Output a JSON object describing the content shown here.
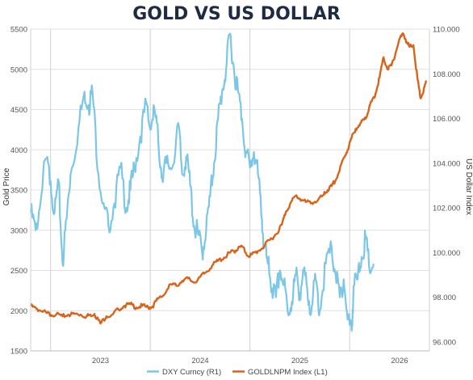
{
  "chart_data": {
    "type": "line",
    "title": "GOLD VS US DOLLAR",
    "ylabel_left": "Gold Price",
    "ylabel_right": "US Dollar Index",
    "x_ticks": [
      "2023",
      "2024",
      "2025",
      "2026"
    ],
    "x_range": [
      2022.3,
      2026.3
    ],
    "year_gridlines": [
      2022.5,
      2023.5,
      2024.5,
      2025.5
    ],
    "ylim_left": [
      1500,
      5500
    ],
    "yticks_left": [
      "1500",
      "2000",
      "2500",
      "3000",
      "3500",
      "4000",
      "4500",
      "5000",
      "5500"
    ],
    "ylim_right": [
      95.6,
      110.0
    ],
    "yticks_right": [
      "96.000",
      "98.000",
      "100.000",
      "102.000",
      "104.000",
      "106.000",
      "108.000",
      "110.000"
    ],
    "grid": true,
    "legend_position": "bottom",
    "colors": {
      "dxy": "#7cc6e6",
      "gold": "#d8641c"
    },
    "series": [
      {
        "name": "DXY Curncy (R1)",
        "axis": "right",
        "points": [
          [
            2022.3,
            101.8
          ],
          [
            2022.35,
            101.0
          ],
          [
            2022.4,
            102.3
          ],
          [
            2022.45,
            104.2
          ],
          [
            2022.5,
            103.2
          ],
          [
            2022.54,
            101.8
          ],
          [
            2022.58,
            103.2
          ],
          [
            2022.62,
            99.5
          ],
          [
            2022.66,
            101.5
          ],
          [
            2022.7,
            103.5
          ],
          [
            2022.78,
            105.6
          ],
          [
            2022.84,
            107.2
          ],
          [
            2022.88,
            106.6
          ],
          [
            2022.92,
            107.2
          ],
          [
            2022.98,
            103.5
          ],
          [
            2023.04,
            102.0
          ],
          [
            2023.08,
            101.2
          ],
          [
            2023.14,
            102.2
          ],
          [
            2023.2,
            103.8
          ],
          [
            2023.26,
            102.0
          ],
          [
            2023.3,
            102.8
          ],
          [
            2023.34,
            103.8
          ],
          [
            2023.4,
            105.2
          ],
          [
            2023.46,
            106.7
          ],
          [
            2023.5,
            105.5
          ],
          [
            2023.54,
            106.5
          ],
          [
            2023.58,
            105.0
          ],
          [
            2023.62,
            103.3
          ],
          [
            2023.66,
            104.0
          ],
          [
            2023.72,
            103.8
          ],
          [
            2023.78,
            105.8
          ],
          [
            2023.82,
            103.5
          ],
          [
            2023.86,
            104.3
          ],
          [
            2023.9,
            103.0
          ],
          [
            2023.94,
            101.2
          ],
          [
            2023.98,
            100.8
          ],
          [
            2024.02,
            100.0
          ],
          [
            2024.06,
            101.0
          ],
          [
            2024.1,
            102.5
          ],
          [
            2024.14,
            104.0
          ],
          [
            2024.18,
            106.0
          ],
          [
            2024.22,
            107.2
          ],
          [
            2024.26,
            108.2
          ],
          [
            2024.3,
            109.8
          ],
          [
            2024.34,
            108.2
          ],
          [
            2024.38,
            107.2
          ],
          [
            2024.42,
            106.0
          ],
          [
            2024.46,
            104.5
          ],
          [
            2024.5,
            103.8
          ],
          [
            2024.54,
            104.5
          ],
          [
            2024.58,
            103.5
          ],
          [
            2024.62,
            101.5
          ],
          [
            2024.64,
            100.2
          ],
          [
            2024.68,
            99.5
          ],
          [
            2024.72,
            98.4
          ],
          [
            2024.76,
            98.0
          ],
          [
            2024.8,
            99.2
          ],
          [
            2024.84,
            98.6
          ],
          [
            2024.88,
            97.3
          ],
          [
            2024.92,
            97.8
          ],
          [
            2024.96,
            99.0
          ],
          [
            2025.0,
            98.2
          ],
          [
            2025.04,
            99.2
          ],
          [
            2025.08,
            98.0
          ],
          [
            2025.12,
            97.6
          ],
          [
            2025.16,
            98.8
          ],
          [
            2025.2,
            97.4
          ],
          [
            2025.26,
            99.5
          ],
          [
            2025.32,
            100.2
          ],
          [
            2025.36,
            99.0
          ],
          [
            2025.4,
            98.0
          ],
          [
            2025.44,
            98.8
          ],
          [
            2025.48,
            97.0
          ],
          [
            2025.52,
            96.5
          ],
          [
            2025.54,
            98.5
          ],
          [
            2025.58,
            98.8
          ],
          [
            2025.62,
            99.8
          ],
          [
            2025.66,
            100.6
          ],
          [
            2025.7,
            99.2
          ],
          [
            2025.74,
            99.5
          ]
        ]
      },
      {
        "name": "GOLDLNPM Index (L1)",
        "axis": "left",
        "points": [
          [
            2022.3,
            2060
          ],
          [
            2022.36,
            2020
          ],
          [
            2022.4,
            2000
          ],
          [
            2022.46,
            1970
          ],
          [
            2022.5,
            1950
          ],
          [
            2022.56,
            1960
          ],
          [
            2022.62,
            1930
          ],
          [
            2022.68,
            1950
          ],
          [
            2022.74,
            1960
          ],
          [
            2022.8,
            1950
          ],
          [
            2022.86,
            1930
          ],
          [
            2022.9,
            1950
          ],
          [
            2022.94,
            1960
          ],
          [
            2023.0,
            1840
          ],
          [
            2023.06,
            1930
          ],
          [
            2023.12,
            1950
          ],
          [
            2023.18,
            2020
          ],
          [
            2023.24,
            2060
          ],
          [
            2023.3,
            2080
          ],
          [
            2023.36,
            2040
          ],
          [
            2023.42,
            2060
          ],
          [
            2023.48,
            2040
          ],
          [
            2023.52,
            2050
          ],
          [
            2023.58,
            2150
          ],
          [
            2023.64,
            2200
          ],
          [
            2023.7,
            2330
          ],
          [
            2023.76,
            2310
          ],
          [
            2023.82,
            2370
          ],
          [
            2023.88,
            2400
          ],
          [
            2023.94,
            2350
          ],
          [
            2024.0,
            2420
          ],
          [
            2024.06,
            2480
          ],
          [
            2024.12,
            2560
          ],
          [
            2024.18,
            2620
          ],
          [
            2024.24,
            2660
          ],
          [
            2024.3,
            2720
          ],
          [
            2024.34,
            2740
          ],
          [
            2024.38,
            2770
          ],
          [
            2024.42,
            2800
          ],
          [
            2024.48,
            2680
          ],
          [
            2024.52,
            2700
          ],
          [
            2024.58,
            2740
          ],
          [
            2024.64,
            2800
          ],
          [
            2024.7,
            2880
          ],
          [
            2024.76,
            2950
          ],
          [
            2024.82,
            3070
          ],
          [
            2024.86,
            3230
          ],
          [
            2024.9,
            3320
          ],
          [
            2024.96,
            3430
          ],
          [
            2025.0,
            3390
          ],
          [
            2025.06,
            3350
          ],
          [
            2025.12,
            3340
          ],
          [
            2025.18,
            3370
          ],
          [
            2025.24,
            3440
          ],
          [
            2025.28,
            3500
          ],
          [
            2025.32,
            3550
          ],
          [
            2025.36,
            3620
          ],
          [
            2025.4,
            3750
          ],
          [
            2025.44,
            3900
          ],
          [
            2025.48,
            4000
          ],
          [
            2025.52,
            4150
          ],
          [
            2025.56,
            4260
          ],
          [
            2025.6,
            4300
          ],
          [
            2025.64,
            4380
          ],
          [
            2025.68,
            4450
          ],
          [
            2025.72,
            4600
          ],
          [
            2025.76,
            4700
          ],
          [
            2025.8,
            4900
          ],
          [
            2025.84,
            5150
          ],
          [
            2025.88,
            5000
          ],
          [
            2025.92,
            5050
          ],
          [
            2025.96,
            5200
          ],
          [
            2026.0,
            5380
          ],
          [
            2026.04,
            5440
          ],
          [
            2026.08,
            5320
          ],
          [
            2026.1,
            5280
          ],
          [
            2026.14,
            5300
          ],
          [
            2026.18,
            4880
          ],
          [
            2026.21,
            4640
          ],
          [
            2026.24,
            4720
          ],
          [
            2026.27,
            4860
          ]
        ]
      }
    ]
  }
}
